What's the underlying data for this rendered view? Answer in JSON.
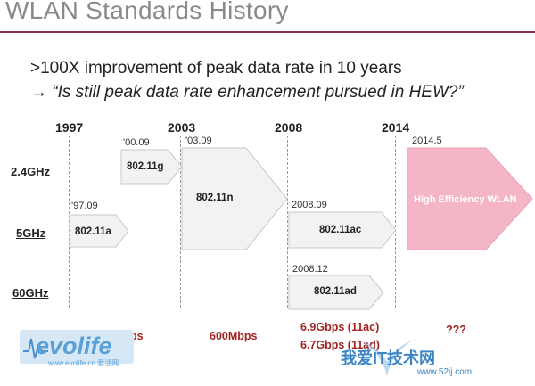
{
  "title": "WLAN Standards History",
  "bullets": {
    "line1": ">100X improvement of peak data rate in 10 years",
    "arrow": "→",
    "line2": "“Is still peak data rate enhancement pursued in HEW?”"
  },
  "years": [
    "1997",
    "2003",
    "2008",
    "2014"
  ],
  "bands": [
    "2.4GHz",
    "5GHz",
    "60GHz"
  ],
  "standards": [
    {
      "date": "'97.09",
      "label": "802.11a",
      "band": "5GHz"
    },
    {
      "date": "'00.09",
      "label": "802.11g",
      "band": "2.4GHz"
    },
    {
      "date": "'03.09",
      "label": "802.11n",
      "band": "2.4GHz / 5GHz"
    },
    {
      "date": "2008.09",
      "label": "802.11ac",
      "band": "5GHz"
    },
    {
      "date": "2008.12",
      "label": "802.11ad",
      "band": "60GHz"
    },
    {
      "date": "2014.5",
      "label": "High Efficiency WLAN",
      "band": "2.4GHz / 5GHz"
    }
  ],
  "rates": [
    "54Mbps",
    "600Mbps",
    "6.9Gbps (11ac)",
    "6.7Gbps (11ad)",
    "???"
  ],
  "logo": {
    "text": "evolife",
    "sub": "www.evolife.cn 爱活网"
  },
  "watermark": {
    "text": "我爱IT技术网",
    "url": "www.52ij.com"
  },
  "colors": {
    "accent_rule": "#8b2f4b",
    "rate_text": "#a0241f",
    "hew_fill": "#f4b6c6",
    "box_fill": "#f2f2f2"
  }
}
